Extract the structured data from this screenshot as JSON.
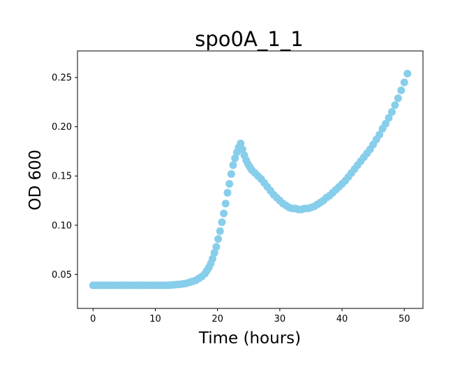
{
  "chart_data": {
    "type": "scatter",
    "title": "spo0A_1_1",
    "xlabel": "Time (hours)",
    "ylabel": "OD 600",
    "xlim": [
      -2.5,
      53.0
    ],
    "ylim": [
      0.0155,
      0.277
    ],
    "xticks": [
      0,
      10,
      20,
      30,
      40,
      50
    ],
    "yticks": [
      0.05,
      0.1,
      0.15,
      0.2,
      0.25
    ],
    "xtick_labels": [
      "0",
      "10",
      "20",
      "30",
      "40",
      "50"
    ],
    "ytick_labels": [
      "0.05",
      "0.10",
      "0.15",
      "0.20",
      "0.25"
    ],
    "marker_color": "#87CEEB",
    "grid": false,
    "legend": "none",
    "series": [
      {
        "x": [
          0.0,
          0.5,
          1.0,
          1.5,
          2.0,
          2.5,
          3.0,
          3.5,
          4.0,
          4.5,
          5.0,
          5.5,
          6.0,
          6.5,
          7.0,
          7.5,
          8.0,
          8.5,
          9.0,
          9.5,
          10.0,
          10.5,
          11.0,
          11.5,
          12.0,
          12.5,
          13.0,
          13.5,
          14.0,
          14.5,
          15.0,
          15.5,
          16.0,
          16.5,
          17.0,
          17.5,
          18.0,
          18.3,
          18.6,
          18.9,
          19.2,
          19.5,
          19.8,
          20.1,
          20.4,
          20.7,
          21.0,
          21.3,
          21.6,
          21.9,
          22.2,
          22.5,
          22.8,
          23.1,
          23.4,
          23.7,
          24.0,
          24.3,
          24.6,
          24.9,
          25.2,
          25.5,
          26.0,
          26.5,
          27.0,
          27.5,
          28.0,
          28.5,
          29.0,
          29.5,
          30.0,
          30.5,
          31.0,
          31.5,
          32.0,
          32.5,
          33.0,
          33.5,
          34.0,
          34.5,
          35.0,
          35.5,
          36.0,
          36.5,
          37.0,
          37.5,
          38.0,
          38.5,
          39.0,
          39.5,
          40.0,
          40.5,
          41.0,
          41.5,
          42.0,
          42.5,
          43.0,
          43.5,
          44.0,
          44.5,
          45.0,
          45.5,
          46.0,
          46.5,
          47.0,
          47.5,
          48.0,
          48.5,
          49.0,
          49.5,
          50.0,
          50.5
        ],
        "y": [
          0.039,
          0.039,
          0.039,
          0.039,
          0.039,
          0.039,
          0.039,
          0.039,
          0.039,
          0.039,
          0.039,
          0.039,
          0.039,
          0.039,
          0.039,
          0.039,
          0.039,
          0.039,
          0.039,
          0.039,
          0.039,
          0.039,
          0.039,
          0.039,
          0.039,
          0.0392,
          0.0395,
          0.0398,
          0.04,
          0.0405,
          0.041,
          0.042,
          0.043,
          0.044,
          0.046,
          0.048,
          0.051,
          0.054,
          0.057,
          0.061,
          0.066,
          0.072,
          0.078,
          0.086,
          0.094,
          0.103,
          0.112,
          0.122,
          0.133,
          0.142,
          0.152,
          0.161,
          0.168,
          0.174,
          0.179,
          0.183,
          0.177,
          0.171,
          0.166,
          0.162,
          0.159,
          0.156,
          0.153,
          0.15,
          0.147,
          0.143,
          0.139,
          0.135,
          0.131,
          0.128,
          0.125,
          0.122,
          0.12,
          0.118,
          0.117,
          0.117,
          0.116,
          0.116,
          0.117,
          0.117,
          0.118,
          0.119,
          0.121,
          0.123,
          0.125,
          0.128,
          0.13,
          0.133,
          0.136,
          0.139,
          0.142,
          0.145,
          0.149,
          0.153,
          0.157,
          0.161,
          0.165,
          0.169,
          0.173,
          0.177,
          0.182,
          0.187,
          0.192,
          0.198,
          0.203,
          0.209,
          0.215,
          0.222,
          0.229,
          0.237,
          0.245,
          0.254
        ]
      }
    ]
  }
}
